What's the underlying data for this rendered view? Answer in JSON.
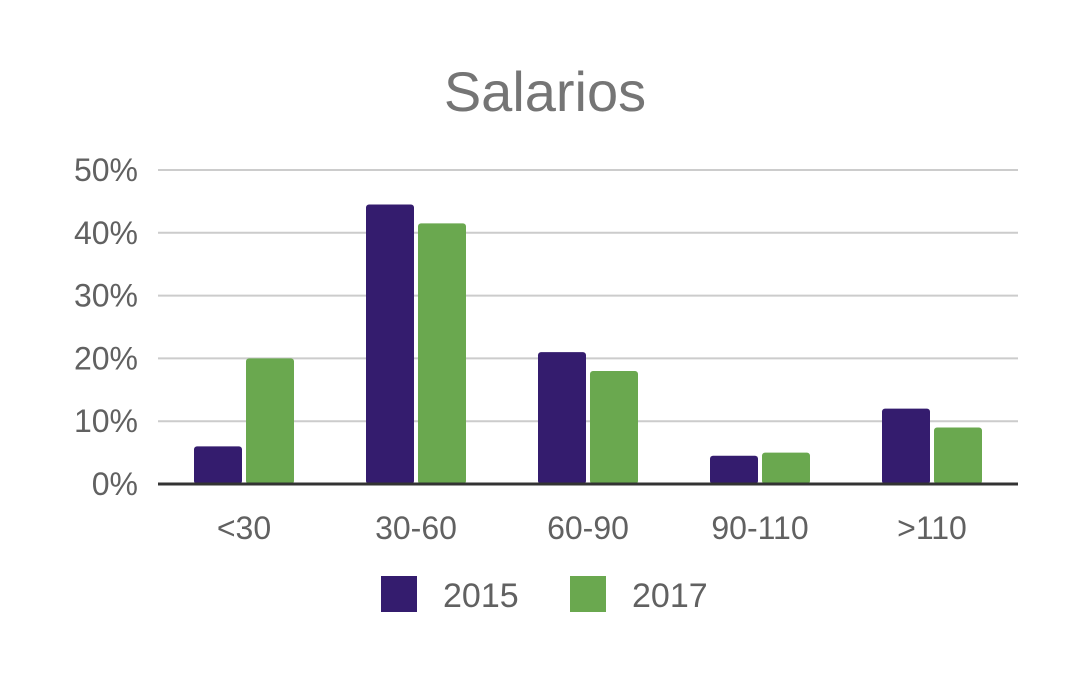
{
  "chart_data": {
    "type": "bar",
    "title": "Salarios",
    "xlabel": "",
    "ylabel": "",
    "categories": [
      "<30",
      "30-60",
      "60-90",
      "90-110",
      ">110"
    ],
    "series": [
      {
        "name": "2015",
        "color": "#341c6e",
        "values": [
          6,
          44.5,
          21,
          4.5,
          12
        ]
      },
      {
        "name": "2017",
        "color": "#6aa84f",
        "values": [
          20,
          41.5,
          18,
          5,
          9
        ]
      }
    ],
    "ylim": [
      0,
      50
    ],
    "yticks": [
      "0%",
      "10%",
      "20%",
      "30%",
      "40%",
      "50%"
    ],
    "grid": true,
    "legend": "bottom"
  }
}
